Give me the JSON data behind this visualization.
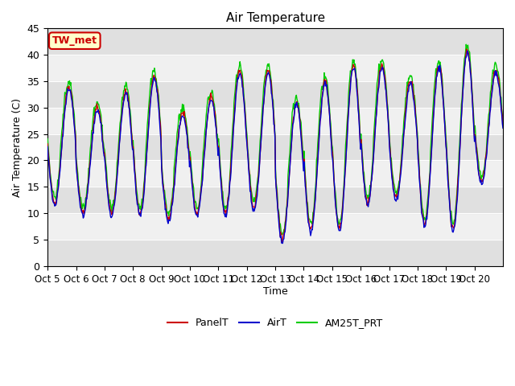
{
  "title": "Air Temperature",
  "ylabel": "Air Temperature (C)",
  "xlabel": "Time",
  "ylim": [
    0,
    45
  ],
  "yticks": [
    0,
    5,
    10,
    15,
    20,
    25,
    30,
    35,
    40,
    45
  ],
  "x_tick_labels": [
    "Oct 5",
    "Oct 6",
    "Oct 7",
    "Oct 8",
    "Oct 9",
    "Oct 10",
    "Oct 11",
    "Oct 12",
    "Oct 13",
    "Oct 14",
    "Oct 15",
    "Oct 16",
    "Oct 17",
    "Oct 18",
    "Oct 19",
    "Oct 20"
  ],
  "label_annotation": "TW_met",
  "line_colors": {
    "PanelT": "#cc0000",
    "AirT": "#0000cc",
    "AM25T_PRT": "#00cc00"
  },
  "band_color": "#e0e0e0",
  "bg_color": "#f0f0f0",
  "n_points_per_day": 48,
  "n_days": 16,
  "day_maxes": [
    34,
    30,
    33,
    36,
    29,
    32,
    37,
    37,
    31,
    35,
    38,
    38,
    35,
    38,
    41,
    37
  ],
  "day_mins": [
    12,
    10,
    10,
    10,
    9,
    10,
    10,
    11,
    5,
    7,
    7,
    12,
    13,
    8,
    7,
    16
  ]
}
